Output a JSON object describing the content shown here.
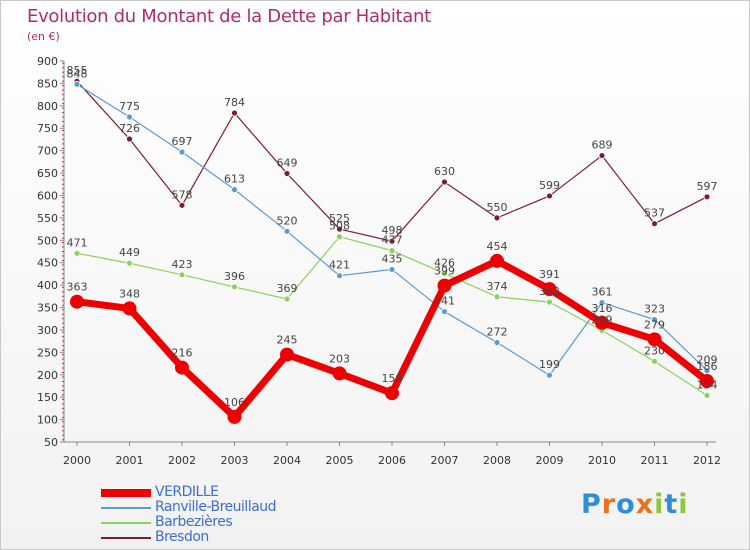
{
  "chart": {
    "title": "Evolution du Montant de la Dette par Habitant",
    "subtitle": "(en €)"
  },
  "chart_data": {
    "type": "line",
    "title": "Evolution du Montant de la Dette par Habitant",
    "subtitle": "(en €)",
    "xlabel": "",
    "ylabel": "",
    "x": [
      "2000",
      "2001",
      "2002",
      "2003",
      "2004",
      "2005",
      "2006",
      "2007",
      "2008",
      "2009",
      "2010",
      "2011",
      "2012"
    ],
    "ylim": [
      50,
      900
    ],
    "yticks": [
      50,
      100,
      150,
      200,
      250,
      300,
      350,
      400,
      450,
      500,
      550,
      600,
      650,
      700,
      750,
      800,
      850,
      900
    ],
    "grid": false,
    "legend_position": "bottom-left",
    "series": [
      {
        "name": "Bresdon",
        "color": "#7a1f2b",
        "values": [
          855,
          726,
          578,
          null,
          649,
          525,
          498,
          630,
          550,
          599,
          689,
          537,
          597
        ],
        "highlight": false
      },
      {
        "name": "Barbezières",
        "color": "#88d35a",
        "values": [
          471,
          449,
          423,
          396,
          369,
          508,
          477,
          426,
          374,
          362,
          299,
          230,
          154
        ],
        "highlight": false
      },
      {
        "name": "Ranville-Breuillaud",
        "color": "#5b9bd0",
        "values": [
          848,
          775,
          697,
          613,
          520,
          421,
          435,
          341,
          272,
          199,
          361,
          323,
          209
        ],
        "highlight": false
      },
      {
        "name": "VERDILLE",
        "color": "#ee0000",
        "values": [
          363,
          348,
          216,
          106,
          245,
          203,
          159,
          399,
          454,
          391,
          316,
          279,
          186
        ],
        "highlight": true
      }
    ],
    "extra_points": [
      {
        "series": "Bresdon",
        "x": "2003",
        "y": 784
      }
    ],
    "legend_order": [
      "VERDILLE",
      "Ranville-Breuillaud",
      "Barbezières",
      "Bresdon"
    ]
  },
  "logo": {
    "letters": [
      "P",
      "r",
      "o",
      "x",
      "i",
      "t",
      "i"
    ],
    "colors": [
      "#2f8fd6",
      "#e8731a",
      "#2f8fd6",
      "#e8731a",
      "#8cc63f",
      "#2f8fd6",
      "#8cc63f"
    ]
  }
}
